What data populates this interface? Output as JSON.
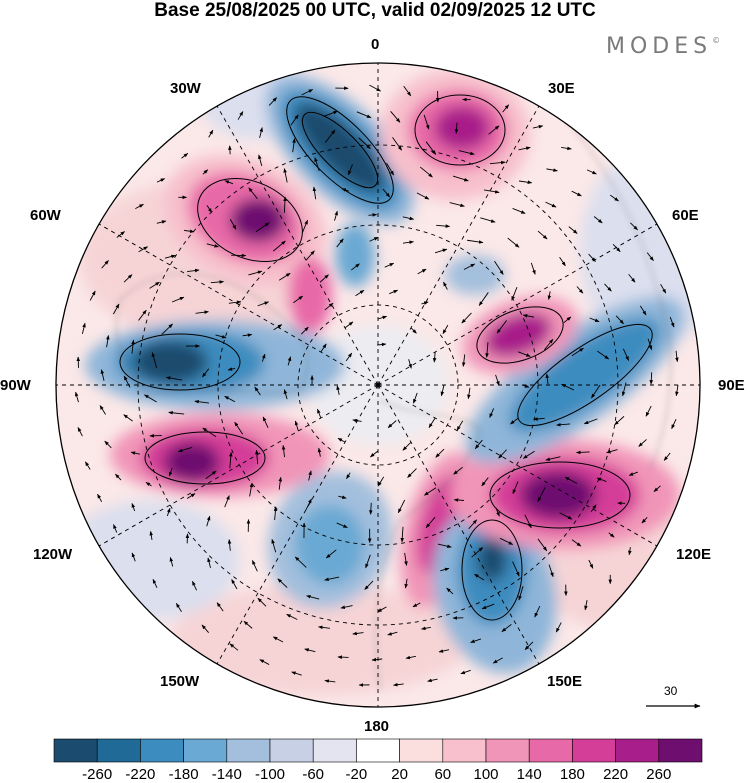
{
  "title": "Base 25/08/2025 00 UTC, valid 02/09/2025 12 UTC",
  "brand": {
    "name": "MODES",
    "mark": "©"
  },
  "longitude_labels": {
    "0": "0",
    "30E": "30E",
    "60E": "60E",
    "90E": "90E",
    "120E": "120E",
    "150E": "150E",
    "180": "180",
    "150W": "150W",
    "120W": "120W",
    "90W": "90W",
    "60W": "60W",
    "30W": "30W"
  },
  "wind_reference": {
    "value": "30"
  },
  "colorbar": {
    "colors": [
      "#1b4b6e",
      "#1f6a97",
      "#3d8cbf",
      "#6aa9d3",
      "#a3bfdd",
      "#c8d0e6",
      "#e3e4f0",
      "#ffffff",
      "#fbdede",
      "#f7c0cc",
      "#f195b8",
      "#e869a7",
      "#d43d98",
      "#a81e8a",
      "#6e0e6f"
    ],
    "labels": [
      "-260",
      "-220",
      "-180",
      "-140",
      "-100",
      "-60",
      "-20",
      "20",
      "60",
      "100",
      "140",
      "180",
      "220",
      "260"
    ]
  }
}
